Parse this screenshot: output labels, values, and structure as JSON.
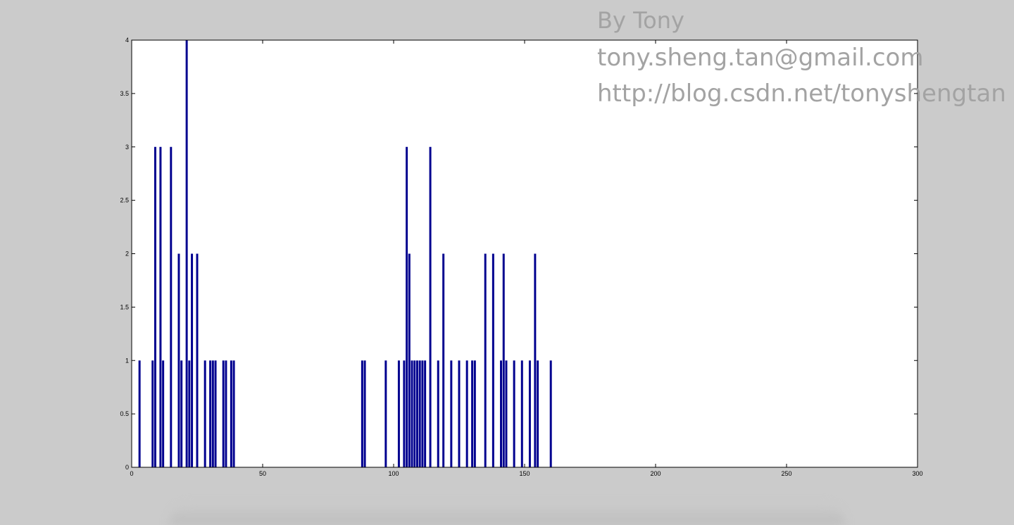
{
  "watermark": {
    "line1": "By Tony",
    "line2": "tony.sheng.tan@gmail.com",
    "line3": "http://blog.csdn.net/tonyshengtan"
  },
  "colors": {
    "bar": "#00008f",
    "background": "#cbcbcb",
    "plot": "#ffffff",
    "watermark": "#a3a3a3"
  },
  "chart_data": {
    "type": "bar",
    "title": "",
    "xlabel": "",
    "ylabel": "",
    "xlim": [
      0,
      300
    ],
    "ylim": [
      0,
      4
    ],
    "x_ticks": [
      0,
      50,
      100,
      150,
      200,
      250,
      300
    ],
    "x_tick_labels": [
      "0",
      "50",
      "100",
      "150",
      "200",
      "250",
      "300"
    ],
    "y_ticks": [
      0,
      0.5,
      1,
      1.5,
      2,
      2.5,
      3,
      3.5,
      4
    ],
    "y_tick_labels": [
      "0",
      "0.5",
      "1",
      "1.5",
      "2",
      "2.5",
      "3",
      "3.5",
      "4"
    ],
    "grid": false,
    "legend": false,
    "x": [
      3,
      8,
      9,
      11,
      12,
      15,
      18,
      19,
      21,
      22,
      23,
      25,
      28,
      30,
      31,
      32,
      35,
      36,
      38,
      39,
      88,
      89,
      97,
      102,
      104,
      105,
      106,
      107,
      108,
      109,
      110,
      111,
      112,
      114,
      117,
      119,
      122,
      125,
      128,
      130,
      131,
      135,
      138,
      141,
      142,
      143,
      146,
      149,
      152,
      154,
      155,
      160
    ],
    "values": [
      1,
      1,
      3,
      3,
      1,
      3,
      2,
      1,
      4,
      1,
      2,
      2,
      1,
      1,
      1,
      1,
      1,
      1,
      1,
      1,
      1,
      1,
      1,
      1,
      1,
      3,
      2,
      1,
      1,
      1,
      1,
      1,
      1,
      3,
      1,
      2,
      1,
      1,
      1,
      1,
      1,
      2,
      2,
      1,
      2,
      1,
      1,
      1,
      1,
      2,
      1,
      1
    ]
  }
}
